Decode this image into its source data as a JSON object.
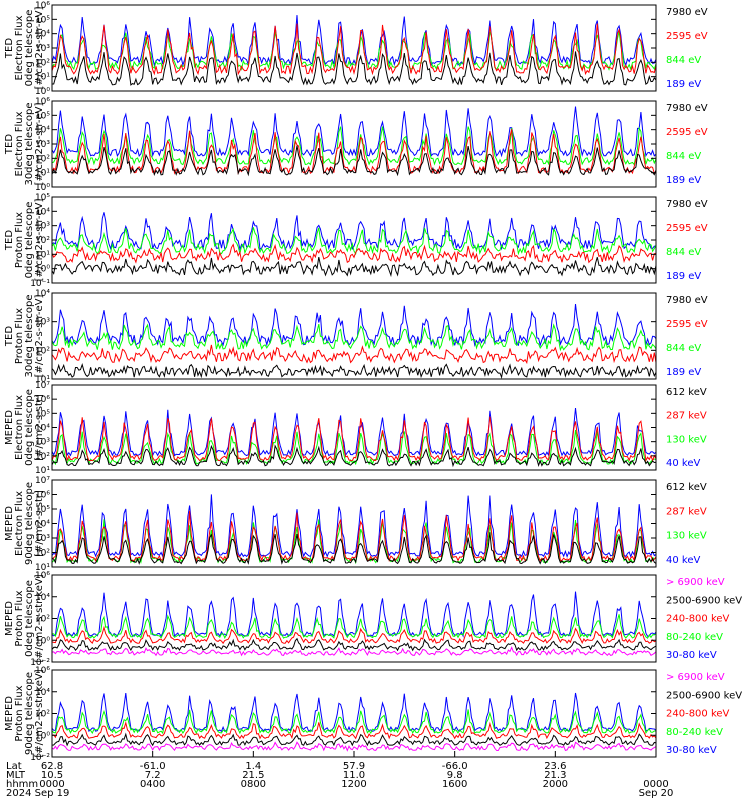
{
  "colors": {
    "blue": "#0000ff",
    "red": "#ff0000",
    "green": "#00ff00",
    "black": "#000000",
    "magenta": "#ff00ff"
  },
  "chart_data": [
    {
      "type": "line",
      "ylabel": [
        "TED",
        "Electron Flux",
        "0deg telescope",
        "[#/cm2-s-str-eV]"
      ],
      "yticks": [
        "10⁰",
        "10¹",
        "10²",
        "10³",
        "10⁴",
        "10⁵",
        "10⁶"
      ],
      "ylog": true,
      "ylim": [
        1,
        1000000
      ],
      "series": [
        {
          "name": "7980 eV",
          "color": "#000000"
        },
        {
          "name": "2595 eV",
          "color": "#ff0000"
        },
        {
          "name": "844 eV",
          "color": "#00ff00"
        },
        {
          "name": "189 eV",
          "color": "#0000ff"
        }
      ]
    },
    {
      "type": "line",
      "ylabel": [
        "TED",
        "Electron Flux",
        "30deg telescope",
        "[#/cm2-s-str-eV]"
      ],
      "yticks": [
        "10⁰",
        "10¹",
        "10²",
        "10³",
        "10⁴",
        "10⁵",
        "10⁶"
      ],
      "ylog": true,
      "ylim": [
        1,
        1000000
      ],
      "series": [
        {
          "name": "7980 eV",
          "color": "#000000"
        },
        {
          "name": "2595 eV",
          "color": "#ff0000"
        },
        {
          "name": "844 eV",
          "color": "#00ff00"
        },
        {
          "name": "189 eV",
          "color": "#0000ff"
        }
      ]
    },
    {
      "type": "line",
      "ylabel": [
        "TED",
        "Proton Flux",
        "0deg telescope",
        "[#/cm2-s-str-eV]"
      ],
      "yticks": [
        "10⁻¹",
        "10⁰",
        "10¹",
        "10²",
        "10³",
        "10⁴",
        "10⁵"
      ],
      "ylog": true,
      "ylim": [
        0.1,
        100000
      ],
      "series": [
        {
          "name": "7980 eV",
          "color": "#000000"
        },
        {
          "name": "2595 eV",
          "color": "#ff0000"
        },
        {
          "name": "844 eV",
          "color": "#00ff00"
        },
        {
          "name": "189 eV",
          "color": "#0000ff"
        }
      ]
    },
    {
      "type": "line",
      "ylabel": [
        "TED",
        "Proton Flux",
        "30deg telescope",
        "[#/cm2-s-str-eV]"
      ],
      "yticks": [
        "10¹",
        "10²",
        "10³",
        "10⁴"
      ],
      "ylog": true,
      "ylim": [
        10,
        10000
      ],
      "series": [
        {
          "name": "7980 eV",
          "color": "#000000"
        },
        {
          "name": "2595 eV",
          "color": "#ff0000"
        },
        {
          "name": "844 eV",
          "color": "#00ff00"
        },
        {
          "name": "189 eV",
          "color": "#0000ff"
        }
      ]
    },
    {
      "type": "line",
      "ylabel": [
        "MEPED",
        "Electron Flux",
        "0deg telescope",
        "[#/cm2-s-str]"
      ],
      "yticks": [
        "10¹",
        "10²",
        "10³",
        "10⁴",
        "10⁵",
        "10⁶",
        "10⁷"
      ],
      "ylog": true,
      "ylim": [
        10,
        10000000
      ],
      "series": [
        {
          "name": "612 keV",
          "color": "#000000"
        },
        {
          "name": "287 keV",
          "color": "#ff0000"
        },
        {
          "name": "130 keV",
          "color": "#00ff00"
        },
        {
          "name": "40 keV",
          "color": "#0000ff"
        }
      ]
    },
    {
      "type": "line",
      "ylabel": [
        "MEPED",
        "Electron Flux",
        "90deg telescope",
        "[#/cm2-s-str]"
      ],
      "yticks": [
        "10¹",
        "10²",
        "10³",
        "10⁴",
        "10⁵",
        "10⁶",
        "10⁷"
      ],
      "ylog": true,
      "ylim": [
        10,
        10000000
      ],
      "series": [
        {
          "name": "612 keV",
          "color": "#000000"
        },
        {
          "name": "287 keV",
          "color": "#ff0000"
        },
        {
          "name": "130 keV",
          "color": "#00ff00"
        },
        {
          "name": "40 keV",
          "color": "#0000ff"
        }
      ]
    },
    {
      "type": "line",
      "ylabel": [
        "MEPED",
        "Proton Flux",
        "0deg telescope",
        "[#/cm2-s-str-keV]"
      ],
      "yticks": [
        "10⁻²",
        "10⁰",
        "10²",
        "10⁴",
        "10⁶"
      ],
      "ylog": true,
      "ylim": [
        0.01,
        1000000
      ],
      "series": [
        {
          "name": "> 6900 keV",
          "color": "#ff00ff"
        },
        {
          "name": "2500-6900 keV",
          "color": "#000000"
        },
        {
          "name": "240-800 keV",
          "color": "#ff0000"
        },
        {
          "name": "80-240 keV",
          "color": "#00ff00"
        },
        {
          "name": "30-80 keV",
          "color": "#0000ff"
        }
      ]
    },
    {
      "type": "line",
      "ylabel": [
        "MEPED",
        "Proton Flux",
        "90deg telescope",
        "[#/cm2-s-str-keV]"
      ],
      "yticks": [
        "10⁻²",
        "10⁰",
        "10²",
        "10⁴",
        "10⁶"
      ],
      "ylog": true,
      "ylim": [
        0.01,
        1000000
      ],
      "series": [
        {
          "name": "> 6900 keV",
          "color": "#ff00ff"
        },
        {
          "name": "2500-6900 keV",
          "color": "#000000"
        },
        {
          "name": "240-800 keV",
          "color": "#ff0000"
        },
        {
          "name": "80-240 keV",
          "color": "#00ff00"
        },
        {
          "name": "30-80 keV",
          "color": "#0000ff"
        }
      ]
    }
  ],
  "xaxis": {
    "row_labels": [
      "Lat",
      "MLT",
      "hhmm",
      "2024"
    ],
    "ticks": [
      {
        "lat": "62.8",
        "mlt": "10.5",
        "hhmm": "0000",
        "date": "Sep 19"
      },
      {
        "lat": "-61.0",
        "mlt": "7.2",
        "hhmm": "0400",
        "date": ""
      },
      {
        "lat": "1.4",
        "mlt": "21.5",
        "hhmm": "0800",
        "date": ""
      },
      {
        "lat": "57.9",
        "mlt": "11.0",
        "hhmm": "1200",
        "date": ""
      },
      {
        "lat": "-66.0",
        "mlt": "9.8",
        "hhmm": "1600",
        "date": ""
      },
      {
        "lat": "23.6",
        "mlt": "21.3",
        "hhmm": "2000",
        "date": ""
      },
      {
        "lat": "",
        "mlt": "",
        "hhmm": "0000",
        "date": "Sep 20"
      }
    ]
  }
}
